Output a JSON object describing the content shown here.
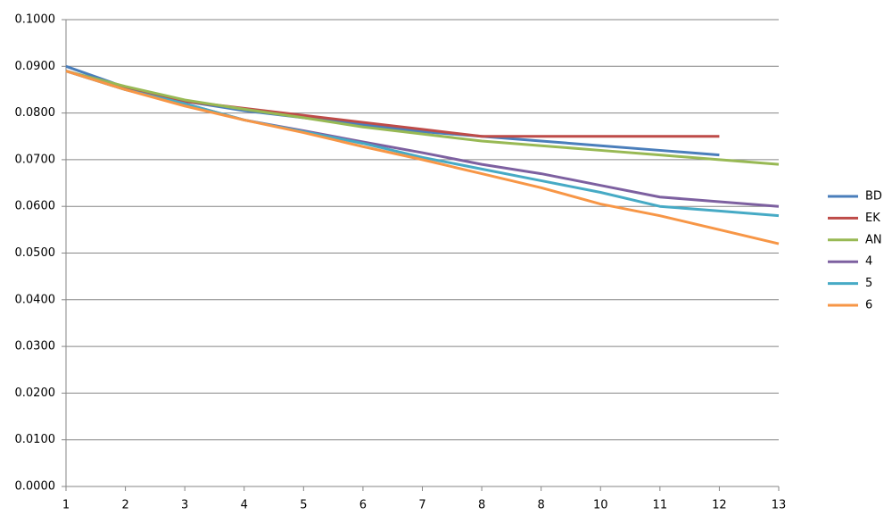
{
  "chart_data": {
    "type": "line",
    "categories": [
      "1",
      "2",
      "3",
      "4",
      "5",
      "6",
      "7",
      "8",
      "8",
      "10",
      "11",
      "12",
      "13"
    ],
    "series": [
      {
        "name": "BD",
        "color": "#4a7ebb",
        "values": [
          0.09,
          0.0855,
          0.0825,
          0.0805,
          0.079,
          0.0775,
          0.076,
          0.075,
          0.074,
          0.073,
          0.072,
          0.071,
          null
        ]
      },
      {
        "name": "EK",
        "color": "#be4b48",
        "values": [
          0.089,
          0.0855,
          0.0825,
          0.081,
          0.0795,
          0.078,
          0.0765,
          0.075,
          0.075,
          0.075,
          0.075,
          0.075,
          null
        ]
      },
      {
        "name": "AN",
        "color": "#98b954",
        "values": [
          0.089,
          0.0857,
          0.0828,
          0.0808,
          0.079,
          0.077,
          0.0755,
          0.074,
          0.073,
          0.072,
          0.071,
          0.07,
          0.069
        ]
      },
      {
        "name": "4",
        "color": "#7d60a0",
        "values": [
          0.089,
          0.085,
          0.082,
          0.0785,
          0.0762,
          0.0738,
          0.0715,
          0.069,
          0.067,
          0.0645,
          0.062,
          0.061,
          0.06
        ]
      },
      {
        "name": "5",
        "color": "#46aac5",
        "values": [
          0.089,
          0.085,
          0.082,
          0.0785,
          0.076,
          0.0735,
          0.0705,
          0.068,
          0.0655,
          0.063,
          0.06,
          0.059,
          0.058
        ]
      },
      {
        "name": "6",
        "color": "#f79646",
        "values": [
          0.089,
          0.085,
          0.0815,
          0.0785,
          0.0758,
          0.0728,
          0.07,
          0.067,
          0.064,
          0.0605,
          0.058,
          0.055,
          0.052
        ]
      }
    ],
    "ylim": [
      0,
      0.1
    ],
    "yticks": [
      {
        "value": 0,
        "label": "0.0000"
      },
      {
        "value": 0.01,
        "label": "0.0100"
      },
      {
        "value": 0.02,
        "label": "0.0200"
      },
      {
        "value": 0.03,
        "label": "0.0300"
      },
      {
        "value": 0.04,
        "label": "0.0400"
      },
      {
        "value": 0.05,
        "label": "0.0500"
      },
      {
        "value": 0.06,
        "label": "0.0600"
      },
      {
        "value": 0.07,
        "label": "0.0700"
      },
      {
        "value": 0.08,
        "label": "0.0800"
      },
      {
        "value": 0.09,
        "label": "0.0900"
      },
      {
        "value": 0.1,
        "label": "0.1000"
      }
    ],
    "grid": true,
    "legend": "right"
  }
}
